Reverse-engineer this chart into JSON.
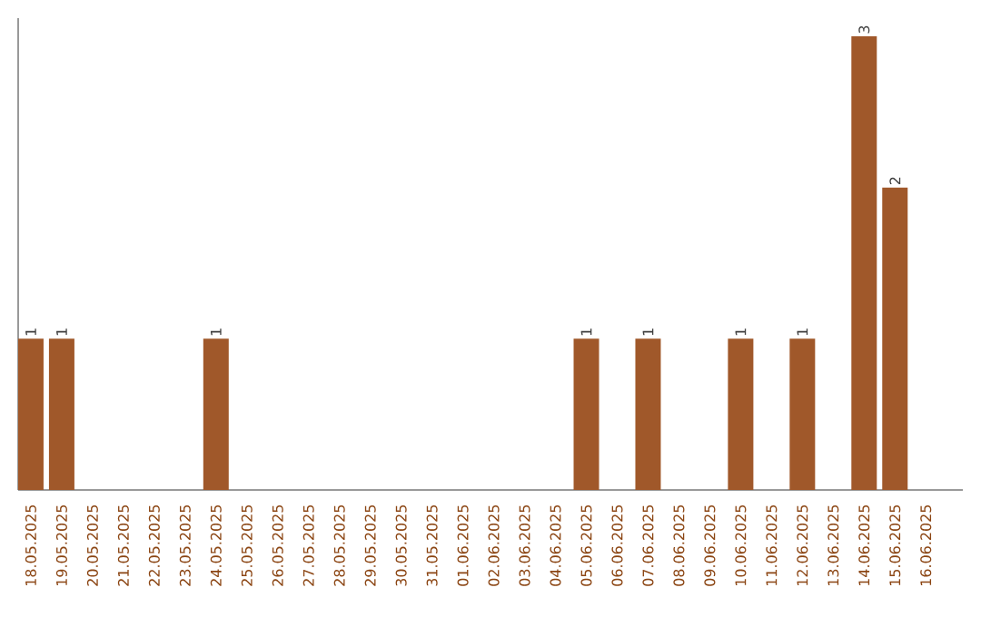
{
  "chart_data": {
    "type": "bar",
    "categories": [
      "18.05.2025",
      "19.05.2025",
      "20.05.2025",
      "21.05.2025",
      "22.05.2025",
      "23.05.2025",
      "24.05.2025",
      "25.05.2025",
      "26.05.2025",
      "27.05.2025",
      "28.05.2025",
      "29.05.2025",
      "30.05.2025",
      "31.05.2025",
      "01.06.2025",
      "02.06.2025",
      "03.06.2025",
      "04.06.2025",
      "05.06.2025",
      "06.06.2025",
      "07.06.2025",
      "08.06.2025",
      "09.06.2025",
      "10.06.2025",
      "11.06.2025",
      "12.06.2025",
      "13.06.2025",
      "14.06.2025",
      "15.06.2025",
      "16.06.2025"
    ],
    "values": [
      1,
      1,
      0,
      0,
      0,
      0,
      1,
      0,
      0,
      0,
      0,
      0,
      0,
      0,
      0,
      0,
      0,
      0,
      1,
      0,
      1,
      0,
      0,
      1,
      0,
      1,
      0,
      3,
      2,
      0
    ],
    "value_labels": [
      "1",
      "1",
      null,
      null,
      null,
      null,
      "1",
      null,
      null,
      null,
      null,
      null,
      null,
      null,
      null,
      null,
      null,
      null,
      "1",
      null,
      "1",
      null,
      null,
      "1",
      null,
      "1",
      null,
      "3",
      "2",
      null
    ],
    "color": "#a0582a",
    "ylim": [
      0,
      3.12
    ],
    "tick_labels": "x"
  }
}
